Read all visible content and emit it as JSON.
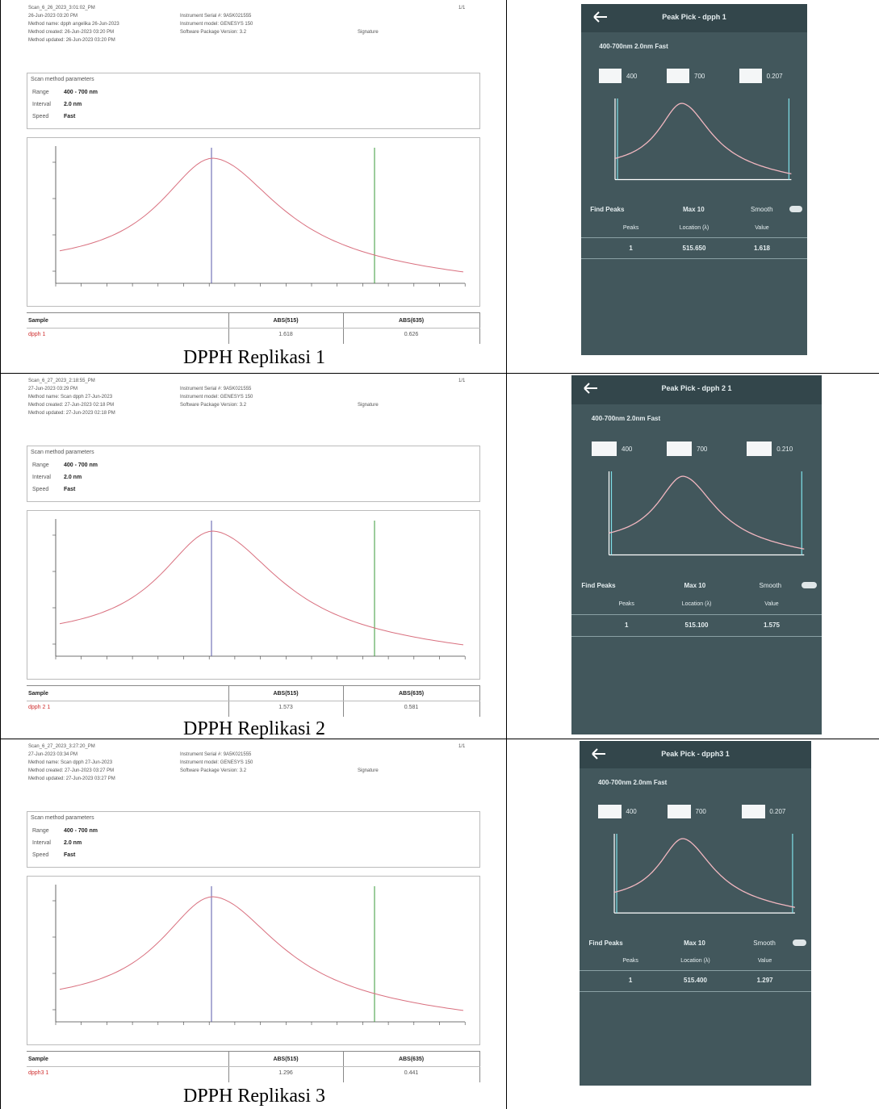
{
  "rows": [
    {
      "report": {
        "left_lines": [
          "Scan_6_26_2023_3:01:02_PM",
          "26-Jun-2023 03:20 PM",
          "Method name: dpph angelika 26-Jun-2023",
          "Method created: 26-Jun-2023 03:20 PM",
          "Method updated: 26-Jun-2023 03:20 PM"
        ],
        "mid_lines": [
          "Instrument Serial #: 9A5K021555",
          "Instrument model: GENESYS 150",
          "Software Package Version: 3.2"
        ],
        "signature": "Signature",
        "page": "1/1",
        "params_title": "Scan method parameters",
        "params": [
          [
            "Range",
            "400 - 700 nm"
          ],
          [
            "Interval",
            "2.0 nm"
          ],
          [
            "Speed",
            "Fast"
          ]
        ],
        "table": {
          "headers": [
            "Sample",
            "ABS(515)",
            "ABS(635)"
          ],
          "row": [
            "dpph 1",
            "1.618",
            "0.626"
          ]
        }
      },
      "caption": "DPPH Replikasi 1",
      "phone": {
        "title": "Peak Pick - dpph 1",
        "settings": "400-700nm 2.0nm Fast",
        "start": "400",
        "end": "700",
        "threshold": "0.207",
        "find": "Find Peaks",
        "max": "Max 10",
        "smooth": "Smooth",
        "headers": [
          "Peaks",
          "Location (λ)",
          "Value"
        ],
        "row": [
          "1",
          "515.650",
          "1.618"
        ]
      }
    },
    {
      "report": {
        "left_lines": [
          "Scan_6_27_2023_2:18:55_PM",
          "27-Jun-2023 03:29 PM",
          "Method name: Scan dpph 27-Jun-2023",
          "Method created: 27-Jun-2023 02:18 PM",
          "Method updated: 27-Jun-2023 02:18 PM"
        ],
        "mid_lines": [
          "Instrument Serial #: 9A5K021555",
          "Instrument model: GENESYS 150",
          "Software Package Version: 3.2"
        ],
        "signature": "Signature",
        "page": "1/1",
        "params_title": "Scan method parameters",
        "params": [
          [
            "Range",
            "400 - 700 nm"
          ],
          [
            "Interval",
            "2.0 nm"
          ],
          [
            "Speed",
            "Fast"
          ]
        ],
        "table": {
          "headers": [
            "Sample",
            "ABS(515)",
            "ABS(635)"
          ],
          "row": [
            "dpph 2 1",
            "1.573",
            "0.581"
          ]
        }
      },
      "caption": "DPPH Replikasi 2",
      "phone": {
        "title": "Peak Pick - dpph 2 1",
        "settings": "400-700nm 2.0nm Fast",
        "start": "400",
        "end": "700",
        "threshold": "0.210",
        "find": "Find Peaks",
        "max": "Max 10",
        "smooth": "Smooth",
        "headers": [
          "Peaks",
          "Location (λ)",
          "Value"
        ],
        "row": [
          "1",
          "515.100",
          "1.575"
        ]
      }
    },
    {
      "report": {
        "left_lines": [
          "Scan_6_27_2023_3:27:20_PM",
          "27-Jun-2023 03:34 PM",
          "Method name: Scan dpph 27-Jun-2023",
          "Method created: 27-Jun-2023 03:27 PM",
          "Method updated: 27-Jun-2023 03:27 PM"
        ],
        "mid_lines": [
          "Instrument Serial #: 9A5K021555",
          "Instrument model: GENESYS 150",
          "Software Package Version: 3.2"
        ],
        "signature": "Signature",
        "page": "1/1",
        "params_title": "Scan method parameters",
        "params": [
          [
            "Range",
            "400 - 700 nm"
          ],
          [
            "Interval",
            "2.0 nm"
          ],
          [
            "Speed",
            "Fast"
          ]
        ],
        "table": {
          "headers": [
            "Sample",
            "ABS(515)",
            "ABS(635)"
          ],
          "row": [
            "dpph3 1",
            "1.296",
            "0.441"
          ]
        }
      },
      "caption": "DPPH Replikasi 3",
      "phone": {
        "title": "Peak Pick - dpph3 1",
        "settings": "400-700nm 2.0nm Fast",
        "start": "400",
        "end": "700",
        "threshold": "0.207",
        "find": "Find Peaks",
        "max": "Max 10",
        "smooth": "Smooth",
        "headers": [
          "Peaks",
          "Location (λ)",
          "Value"
        ],
        "row": [
          "1",
          "515.400",
          "1.297"
        ]
      }
    }
  ]
}
